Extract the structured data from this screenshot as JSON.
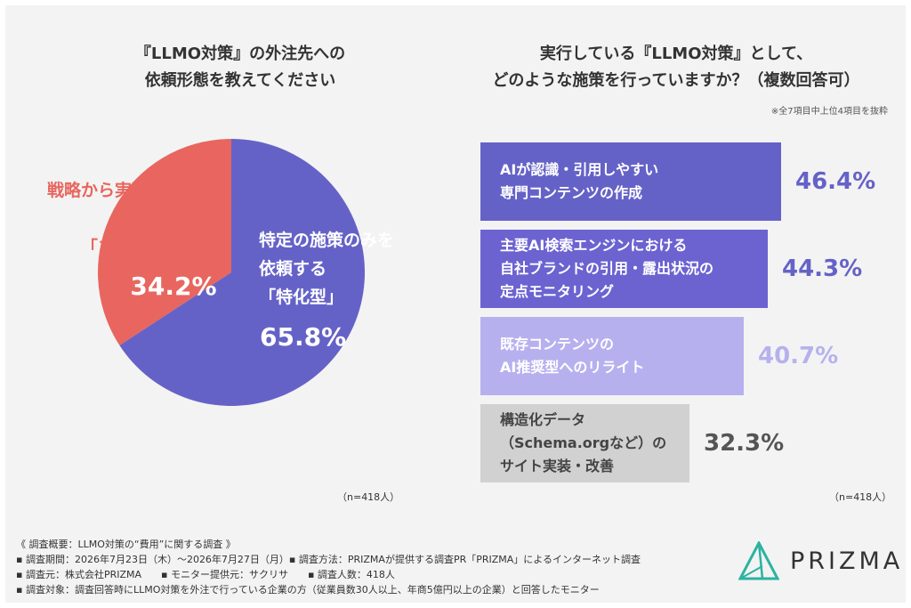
{
  "pie": {
    "title_line1": "『LLMO対策』の外注先への",
    "title_line2": "依頼形態を教えてください",
    "n_label": "（n=418人）",
    "left_label": "戦略から実務実行までを\nお任せする\n「フルサポート型」",
    "left_pct": "34.2%",
    "right_label": "特定の施策のみを\n依頼する\n「特化型」",
    "right_pct": "65.8%"
  },
  "bars": {
    "title_line1": "実行している『LLMO対策』として、",
    "title_line2": "どのような施策を行っていますか？（複数回答可）",
    "note": "※全7項目中上位4項目を抜粋",
    "n_label": "（n=418人）"
  },
  "chart_data": [
    {
      "type": "pie",
      "title": "『LLMO対策』の外注先への依頼形態を教えてください",
      "categories": [
        "戦略から実務実行までをお任せする「フルサポート型」",
        "特定の施策のみを依頼する「特化型」"
      ],
      "values": [
        34.2,
        65.8
      ],
      "colors": [
        "#e8665f",
        "#6562c7"
      ]
    },
    {
      "type": "bar",
      "orientation": "horizontal",
      "title": "実行している『LLMO対策』として、どのような施策を行っていますか？（複数回答可）",
      "categories": [
        "AIが認識・引用しやすい\n専門コンテンツの作成",
        "主要AI検索エンジンにおける\n自社ブランドの引用・露出状況の\n定点モニタリング",
        "既存コンテンツの\nAI推奨型へのリライト",
        "構造化データ\n（Schema.orgなど）の\nサイト実装・改善"
      ],
      "values": [
        46.4,
        44.3,
        40.7,
        32.3
      ],
      "value_labels": [
        "46.4%",
        "44.3%",
        "40.7%",
        "32.3%"
      ],
      "unit": "%",
      "bar_colors": [
        "#6562c7",
        "#6c63d1",
        "#b6b1ee",
        "#d1d1d1"
      ],
      "label_colors": [
        "#ffffff",
        "#ffffff",
        "#ffffff",
        "#444444"
      ],
      "value_colors": [
        "#6562c7",
        "#6562c7",
        "#b6b1ee",
        "#555555"
      ]
    }
  ],
  "footer": {
    "line1": "《 調査概要：LLMO対策の“費用”に関する調査 》",
    "line2": "▪ 調査期間：2026年7月23日（木）～2026年7月27日（月）▪ 調査方法：PRIZMAが提供する調査PR「PRIZMA」によるインターネット調査",
    "line3": "▪ 調査元：株式会社PRIZMA　　▪ モニター提供元：サクリサ　　▪ 調査人数：418人",
    "line4": "▪ 調査対象：調査回答時にLLMO対策を外注で行っている企業の方（従業員数30人以上、年商5億円以上の企業）と回答したモニター"
  },
  "logo": {
    "text": "PRIZMA",
    "icon": "prizma-prism-icon"
  }
}
